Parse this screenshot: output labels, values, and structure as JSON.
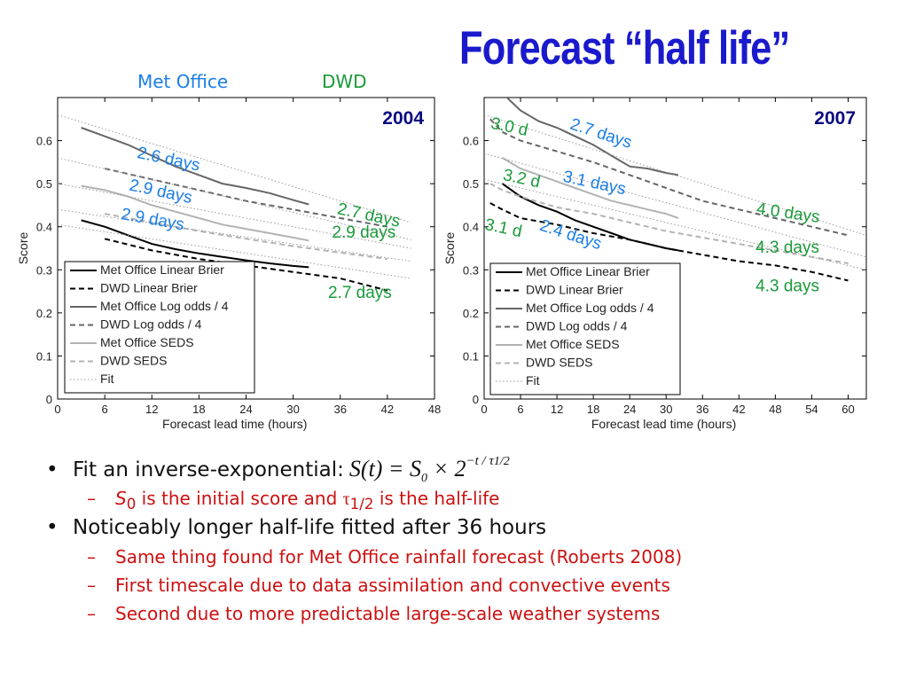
{
  "title": "Forecast “half life”",
  "headers": {
    "met_office": "Met Office",
    "dwd": "DWD"
  },
  "bullets": {
    "b1_text": "Fit an inverse-exponential:",
    "formula": {
      "lhs": "S(t) = S",
      "sub0": "0",
      "times": " × 2",
      "exp": "−t / τ",
      "exp_sub": "1/2"
    },
    "b1_sub": {
      "s": "S",
      "s_sub": "0",
      "mid": " is the initial score and ",
      "tau": "τ",
      "tau_sub": "1/2",
      "end": " is the half-life"
    },
    "b2_text": "Noticeably longer half-life fitted after 36 hours",
    "b2_subs": [
      "Same thing found for Met Office rainfall forecast (Roberts 2008)",
      "First timescale due to data assimilation and convective events",
      "Second due to more predictable large-scale weather systems"
    ]
  },
  "legend_items": [
    "Met Office Linear Brier",
    "DWD Linear Brier",
    "Met Office Log odds / 4",
    "DWD Log odds / 4",
    "Met Office SEDS",
    "DWD SEDS",
    "Fit"
  ],
  "chart_data": [
    {
      "type": "line",
      "title": "2004",
      "xlabel": "Forecast lead time (hours)",
      "ylabel": "Score",
      "xlim": [
        0,
        48
      ],
      "ylim": [
        0,
        0.7
      ],
      "xticks": [
        0,
        6,
        12,
        18,
        24,
        30,
        36,
        42,
        48
      ],
      "yticks": [
        0,
        0.1,
        0.2,
        0.3,
        0.4,
        0.5,
        0.6
      ],
      "series": [
        {
          "name": "Met Office Linear Brier",
          "color": "#000000",
          "dash": "solid",
          "x": [
            3,
            6,
            9,
            12,
            15,
            18,
            21,
            24,
            27,
            30,
            32
          ],
          "y": [
            0.415,
            0.4,
            0.38,
            0.36,
            0.348,
            0.338,
            0.33,
            0.322,
            0.315,
            0.309,
            0.306
          ]
        },
        {
          "name": "DWD Linear Brier",
          "color": "#000000",
          "dash": "dash",
          "x": [
            6,
            12,
            18,
            24,
            30,
            36,
            42
          ],
          "y": [
            0.372,
            0.345,
            0.325,
            0.31,
            0.295,
            0.28,
            0.252
          ]
        },
        {
          "name": "Met Office Log odds / 4",
          "color": "#666666",
          "dash": "solid",
          "x": [
            3,
            6,
            9,
            12,
            15,
            18,
            21,
            24,
            27,
            30,
            32
          ],
          "y": [
            0.63,
            0.61,
            0.59,
            0.565,
            0.54,
            0.52,
            0.5,
            0.49,
            0.478,
            0.462,
            0.452
          ]
        },
        {
          "name": "DWD Log odds / 4",
          "color": "#666666",
          "dash": "dash",
          "x": [
            6,
            12,
            18,
            24,
            30,
            36,
            42
          ],
          "y": [
            0.535,
            0.51,
            0.485,
            0.46,
            0.44,
            0.42,
            0.4
          ]
        },
        {
          "name": "Met Office SEDS",
          "color": "#b3b3b3",
          "dash": "solid",
          "x": [
            3,
            6,
            9,
            12,
            15,
            18,
            21,
            24,
            27,
            30,
            32
          ],
          "y": [
            0.495,
            0.485,
            0.47,
            0.45,
            0.435,
            0.42,
            0.405,
            0.395,
            0.385,
            0.375,
            0.368
          ]
        },
        {
          "name": "DWD SEDS",
          "color": "#b3b3b3",
          "dash": "dash",
          "x": [
            6,
            12,
            18,
            24,
            30,
            36,
            42
          ],
          "y": [
            0.43,
            0.41,
            0.39,
            0.372,
            0.355,
            0.34,
            0.325
          ]
        },
        {
          "name": "Fit",
          "color": "#999999",
          "dash": "dot",
          "x": [
            0,
            45
          ],
          "y": [
            0.66,
            0.41
          ]
        },
        {
          "name": "Fit",
          "color": "#999999",
          "dash": "dot",
          "x": [
            0,
            45
          ],
          "y": [
            0.56,
            0.37
          ]
        },
        {
          "name": "Fit",
          "color": "#999999",
          "dash": "dot",
          "x": [
            0,
            45
          ],
          "y": [
            0.5,
            0.35
          ]
        },
        {
          "name": "Fit",
          "color": "#999999",
          "dash": "dot",
          "x": [
            0,
            45
          ],
          "y": [
            0.44,
            0.32
          ]
        },
        {
          "name": "Fit",
          "color": "#999999",
          "dash": "dot",
          "x": [
            0,
            45
          ],
          "y": [
            0.405,
            0.28
          ]
        }
      ],
      "annotations": [
        {
          "text": "2.6 days",
          "color": "#1a7ee6",
          "x": 14,
          "y": 0.545,
          "rotate": 12
        },
        {
          "text": "2.9 days",
          "color": "#1a7ee6",
          "x": 13,
          "y": 0.47,
          "rotate": 12
        },
        {
          "text": "2.9 days",
          "color": "#1a7ee6",
          "x": 12,
          "y": 0.405,
          "rotate": 10
        },
        {
          "text": "2.7 days",
          "color": "#1a9a3a",
          "x": 39.5,
          "y": 0.415,
          "rotate": 12
        },
        {
          "text": "2.9 days",
          "color": "#1a9a3a",
          "x": 39,
          "y": 0.375,
          "rotate": 0
        },
        {
          "text": "2.7 days",
          "color": "#1a9a3a",
          "x": 38.5,
          "y": 0.235,
          "rotate": 0
        }
      ]
    },
    {
      "type": "line",
      "title": "2007",
      "xlabel": "Forecast lead time (hours)",
      "ylabel": "Score",
      "xlim": [
        0,
        63
      ],
      "ylim": [
        0,
        0.7
      ],
      "xticks": [
        0,
        6,
        12,
        18,
        24,
        30,
        36,
        42,
        48,
        54,
        60
      ],
      "yticks": [
        0,
        0.1,
        0.2,
        0.3,
        0.4,
        0.5,
        0.6
      ],
      "series": [
        {
          "name": "Met Office Linear Brier",
          "color": "#000000",
          "dash": "solid",
          "x": [
            3,
            6,
            9,
            12,
            15,
            18,
            21,
            24,
            27,
            30,
            32
          ],
          "y": [
            0.5,
            0.47,
            0.45,
            0.435,
            0.415,
            0.4,
            0.385,
            0.37,
            0.36,
            0.35,
            0.345
          ]
        },
        {
          "name": "DWD Linear Brier",
          "color": "#000000",
          "dash": "dash",
          "x": [
            1,
            3,
            6,
            12,
            18,
            24,
            30,
            36,
            42,
            48,
            54,
            60
          ],
          "y": [
            0.455,
            0.44,
            0.42,
            0.405,
            0.385,
            0.37,
            0.35,
            0.335,
            0.32,
            0.31,
            0.295,
            0.275
          ]
        },
        {
          "name": "Met Office Log odds / 4",
          "color": "#666666",
          "dash": "solid",
          "x": [
            3,
            6,
            9,
            12,
            15,
            18,
            21,
            24,
            27,
            30,
            32
          ],
          "y": [
            0.71,
            0.67,
            0.645,
            0.63,
            0.61,
            0.59,
            0.565,
            0.54,
            0.535,
            0.525,
            0.52
          ]
        },
        {
          "name": "DWD Log odds / 4",
          "color": "#666666",
          "dash": "dash",
          "x": [
            1,
            3,
            6,
            12,
            18,
            24,
            30,
            36,
            42,
            48,
            54,
            60
          ],
          "y": [
            0.65,
            0.62,
            0.6,
            0.575,
            0.55,
            0.52,
            0.49,
            0.46,
            0.44,
            0.42,
            0.4,
            0.38
          ]
        },
        {
          "name": "Met Office SEDS",
          "color": "#b3b3b3",
          "dash": "solid",
          "x": [
            3,
            6,
            9,
            12,
            15,
            18,
            21,
            24,
            27,
            30,
            32
          ],
          "y": [
            0.56,
            0.535,
            0.52,
            0.505,
            0.49,
            0.475,
            0.46,
            0.45,
            0.44,
            0.43,
            0.42
          ]
        },
        {
          "name": "DWD SEDS",
          "color": "#b3b3b3",
          "dash": "dash",
          "x": [
            1,
            3,
            6,
            12,
            18,
            24,
            30,
            36,
            42,
            48,
            54,
            60
          ],
          "y": [
            0.5,
            0.485,
            0.47,
            0.445,
            0.43,
            0.41,
            0.39,
            0.375,
            0.36,
            0.345,
            0.33,
            0.315
          ]
        },
        {
          "name": "Fit",
          "color": "#999999",
          "dash": "dot",
          "x": [
            0,
            63
          ],
          "y": [
            0.66,
            0.38
          ]
        },
        {
          "name": "Fit",
          "color": "#999999",
          "dash": "dot",
          "x": [
            0,
            63
          ],
          "y": [
            0.57,
            0.33
          ]
        },
        {
          "name": "Fit",
          "color": "#999999",
          "dash": "dot",
          "x": [
            0,
            63
          ],
          "y": [
            0.51,
            0.3
          ]
        }
      ],
      "annotations": [
        {
          "text": "3.0 d",
          "color": "#1a9a3a",
          "x": 4,
          "y": 0.62,
          "rotate": 12
        },
        {
          "text": "2.7 days",
          "color": "#1a7ee6",
          "x": 19,
          "y": 0.605,
          "rotate": 18
        },
        {
          "text": "3.2 d",
          "color": "#1a9a3a",
          "x": 6,
          "y": 0.5,
          "rotate": 12
        },
        {
          "text": "3.1 days",
          "color": "#1a7ee6",
          "x": 18,
          "y": 0.49,
          "rotate": 12
        },
        {
          "text": "3.1 d",
          "color": "#1a9a3a",
          "x": 3,
          "y": 0.385,
          "rotate": 12
        },
        {
          "text": "2.4 days",
          "color": "#1a7ee6",
          "x": 14,
          "y": 0.37,
          "rotate": 18
        },
        {
          "text": "4.0 days",
          "color": "#1a9a3a",
          "x": 50,
          "y": 0.42,
          "rotate": 8
        },
        {
          "text": "4.3 days",
          "color": "#1a9a3a",
          "x": 50,
          "y": 0.34,
          "rotate": 0
        },
        {
          "text": "4.3 days",
          "color": "#1a9a3a",
          "x": 50,
          "y": 0.25,
          "rotate": 0
        }
      ]
    }
  ]
}
